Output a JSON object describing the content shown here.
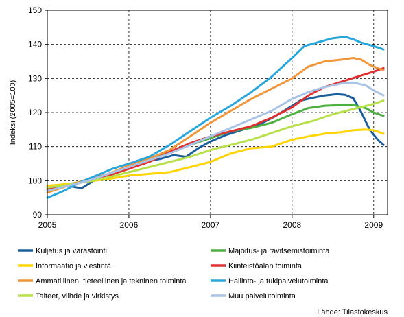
{
  "chart_data": {
    "type": "line",
    "title": "",
    "xlabel": "",
    "ylabel": "Indeksi (2005=100)",
    "ylim": [
      90,
      150
    ],
    "xlim": [
      2005,
      2009.17
    ],
    "yticks": [
      90,
      100,
      110,
      120,
      130,
      140,
      150
    ],
    "xticks": [
      2005,
      2006,
      2007,
      2008,
      2009
    ],
    "ytick_labels": [
      "90",
      "100",
      "110",
      "120",
      "130",
      "140",
      "150"
    ],
    "xtick_labels": [
      "2005",
      "2006",
      "2007",
      "2008",
      "2009"
    ],
    "grid": "dashed",
    "legend_position": "bottom",
    "source": "Lähde: Tilastokeskus",
    "series": [
      {
        "name": "Kuljetus ja varastointi",
        "color": "#1B5E9E",
        "x": [
          2005,
          2005.25,
          2005.42,
          2005.6,
          2005.8,
          2006,
          2006.2,
          2006.4,
          2006.55,
          2006.7,
          2006.85,
          2007,
          2007.2,
          2007.4,
          2007.6,
          2007.8,
          2008,
          2008.1,
          2008.25,
          2008.4,
          2008.55,
          2008.65,
          2008.75,
          2008.85,
          2008.95,
          2009.05,
          2009.12
        ],
        "y": [
          98,
          98.5,
          97.8,
          100.5,
          102.5,
          104,
          105.5,
          106.5,
          107.5,
          107,
          109.5,
          111.5,
          113.5,
          115,
          116.5,
          119,
          122,
          123.5,
          124.3,
          125,
          125.4,
          125.2,
          124.2,
          120,
          115,
          112,
          110.5
        ]
      },
      {
        "name": "Majoitus- ja ravitsemistoiminta",
        "color": "#4CAF3F",
        "x": [
          2005,
          2005.25,
          2005.5,
          2005.75,
          2006,
          2006.25,
          2006.5,
          2006.75,
          2007,
          2007.25,
          2007.5,
          2007.75,
          2008,
          2008.2,
          2008.4,
          2008.6,
          2008.75,
          2008.9,
          2009,
          2009.12
        ],
        "y": [
          98.5,
          99,
          100,
          101.5,
          103.5,
          106,
          108.5,
          110.5,
          112.5,
          114.5,
          115.5,
          117,
          119.5,
          121.3,
          122,
          122.2,
          122.2,
          121.3,
          120,
          119
        ]
      },
      {
        "name": "Informaatio ja viestintä",
        "color": "#FFD400",
        "x": [
          2005,
          2005.25,
          2005.5,
          2005.75,
          2006,
          2006.25,
          2006.5,
          2006.75,
          2007,
          2007.25,
          2007.5,
          2007.75,
          2008,
          2008.2,
          2008.4,
          2008.6,
          2008.75,
          2008.9,
          2009,
          2009.12
        ],
        "y": [
          98.5,
          99,
          99.8,
          100.5,
          101.5,
          102,
          102.5,
          104,
          105.5,
          108,
          109.5,
          110,
          112,
          113,
          113.8,
          114.2,
          114.8,
          115,
          114.8,
          113.8
        ]
      },
      {
        "name": "Kiinteistöalan toiminta",
        "color": "#E03030",
        "x": [
          2005,
          2005.25,
          2005.5,
          2005.75,
          2006,
          2006.25,
          2006.5,
          2006.75,
          2007,
          2007.25,
          2007.5,
          2007.75,
          2008,
          2008.2,
          2008.4,
          2008.6,
          2008.8,
          2009,
          2009.12
        ],
        "y": [
          97.5,
          98.5,
          100,
          101.5,
          103.5,
          105.5,
          108.5,
          111,
          113,
          114.5,
          116,
          118.5,
          121.5,
          125,
          127.5,
          129,
          130.5,
          132,
          133
        ]
      },
      {
        "name": "Ammatillinen, tieteellinen ja tekninen toiminta",
        "color": "#F0963A",
        "x": [
          2005,
          2005.25,
          2005.5,
          2005.75,
          2006,
          2006.25,
          2006.5,
          2006.75,
          2007,
          2007.25,
          2007.5,
          2007.75,
          2008,
          2008.2,
          2008.4,
          2008.6,
          2008.75,
          2008.85,
          2008.95,
          2009.05,
          2009.12
        ],
        "y": [
          96.5,
          98.5,
          100.5,
          102,
          104.5,
          106.5,
          109,
          113,
          117,
          120.5,
          124,
          127,
          130,
          133.5,
          135,
          135.5,
          136,
          135.5,
          134,
          133,
          132.5
        ]
      },
      {
        "name": "Hallinto- ja tukipalvelutoiminta",
        "color": "#29A6DA",
        "x": [
          2005,
          2005.2,
          2005.4,
          2005.6,
          2005.8,
          2006,
          2006.25,
          2006.5,
          2006.75,
          2007,
          2007.25,
          2007.5,
          2007.75,
          2008,
          2008.15,
          2008.3,
          2008.5,
          2008.65,
          2008.75,
          2008.85,
          2009,
          2009.12
        ],
        "y": [
          95,
          97,
          99.5,
          101.5,
          103.5,
          105,
          107,
          110.5,
          114.5,
          118.5,
          122,
          126,
          130.5,
          136,
          139.5,
          140.5,
          141.8,
          142.2,
          141.5,
          140.5,
          139.5,
          138.5
        ]
      },
      {
        "name": "Taiteet, viihde ja virkistys",
        "color": "#B8E04A",
        "x": [
          2005,
          2005.25,
          2005.5,
          2005.75,
          2006,
          2006.25,
          2006.5,
          2006.75,
          2007,
          2007.25,
          2007.5,
          2007.75,
          2008,
          2008.25,
          2008.5,
          2008.75,
          2009,
          2009.12
        ],
        "y": [
          98,
          98.8,
          99.8,
          101,
          102.5,
          104,
          105.5,
          107,
          109,
          110.5,
          112,
          114,
          116,
          117.5,
          119.5,
          121,
          122.5,
          123.5
        ]
      },
      {
        "name": "Muu palvelutoiminta",
        "color": "#A9C3E8",
        "x": [
          2005,
          2005.25,
          2005.5,
          2005.75,
          2006,
          2006.25,
          2006.5,
          2006.75,
          2007,
          2007.25,
          2007.5,
          2007.75,
          2008,
          2008.2,
          2008.4,
          2008.6,
          2008.75,
          2008.9,
          2009,
          2009.12
        ],
        "y": [
          97,
          98.5,
          100,
          102,
          104,
          106,
          108,
          110.5,
          113,
          115.5,
          118,
          120.5,
          124,
          126,
          127.5,
          128.5,
          128.8,
          128,
          126.5,
          125
        ]
      }
    ]
  }
}
